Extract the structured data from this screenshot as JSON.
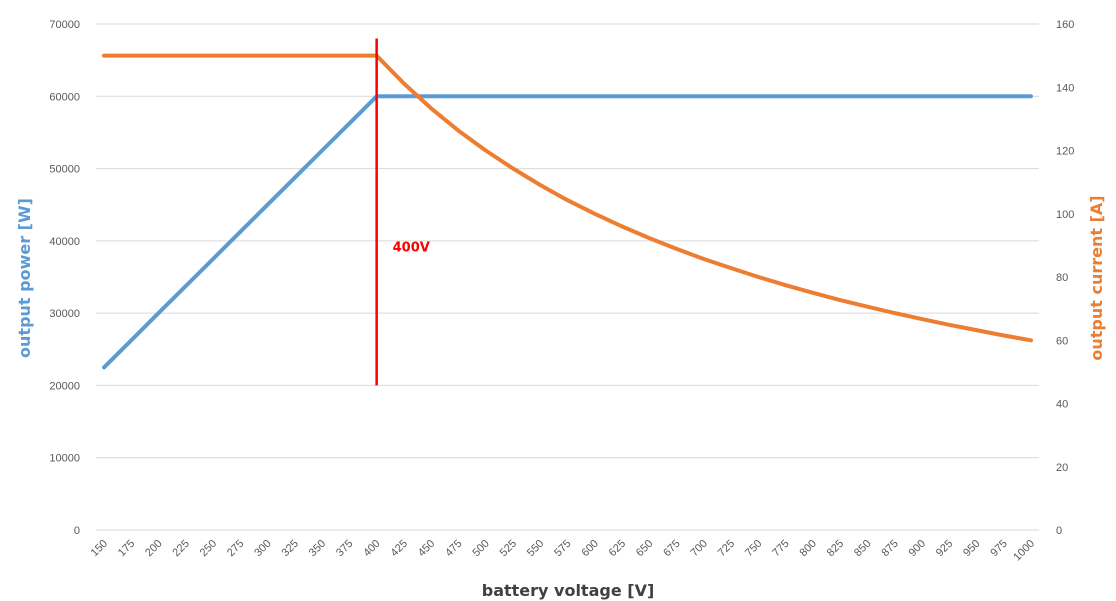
{
  "chart_data": {
    "type": "line",
    "xlabel": "battery voltage [V]",
    "ylabel_left": "output power [W]",
    "ylabel_right": "output current [A]",
    "x": [
      150,
      175,
      200,
      225,
      250,
      275,
      300,
      325,
      350,
      375,
      400,
      425,
      450,
      475,
      500,
      525,
      550,
      575,
      600,
      625,
      650,
      675,
      700,
      725,
      750,
      775,
      800,
      825,
      850,
      875,
      900,
      925,
      950,
      975,
      1000
    ],
    "x_tick_labels": [
      "150",
      "175",
      "200",
      "225",
      "250",
      "275",
      "300",
      "325",
      "350",
      "375",
      "400",
      "425",
      "450",
      "475",
      "500",
      "525",
      "550",
      "575",
      "600",
      "625",
      "650",
      "675",
      "700",
      "725",
      "750",
      "775",
      "800",
      "825",
      "850",
      "875",
      "900",
      "925",
      "950",
      "975",
      "1000"
    ],
    "ylim_left": [
      0,
      70000
    ],
    "yticks_left": [
      "0",
      "10000",
      "20000",
      "30000",
      "40000",
      "50000",
      "60000",
      "70000"
    ],
    "ylim_right": [
      0,
      160
    ],
    "yticks_right": [
      "0",
      "20",
      "40",
      "60",
      "80",
      "100",
      "120",
      "140",
      "160"
    ],
    "grid": true,
    "series": [
      {
        "axis": "left",
        "color": "#5b9bd5",
        "values": [
          22500,
          26250,
          30000,
          33750,
          37500,
          41250,
          45000,
          48750,
          52500,
          56250,
          60000,
          60000,
          60000,
          60000,
          60000,
          60000,
          60000,
          60000,
          60000,
          60000,
          60000,
          60000,
          60000,
          60000,
          60000,
          60000,
          60000,
          60000,
          60000,
          60000,
          60000,
          60000,
          60000,
          60000,
          60000
        ]
      },
      {
        "axis": "right",
        "color": "#ed7d31",
        "values": [
          150,
          150,
          150,
          150,
          150,
          150,
          150,
          150,
          150,
          150,
          150,
          141.2,
          133.3,
          126.3,
          120,
          114.3,
          109.1,
          104.3,
          100,
          96,
          92.3,
          88.9,
          85.7,
          82.8,
          80,
          77.4,
          75,
          72.7,
          70.6,
          68.6,
          66.7,
          64.9,
          63.2,
          61.5,
          60
        ]
      }
    ],
    "marker": {
      "x": 400,
      "label": "400V",
      "color": "#ff0000",
      "y_range_left": [
        20000,
        68000
      ]
    }
  }
}
